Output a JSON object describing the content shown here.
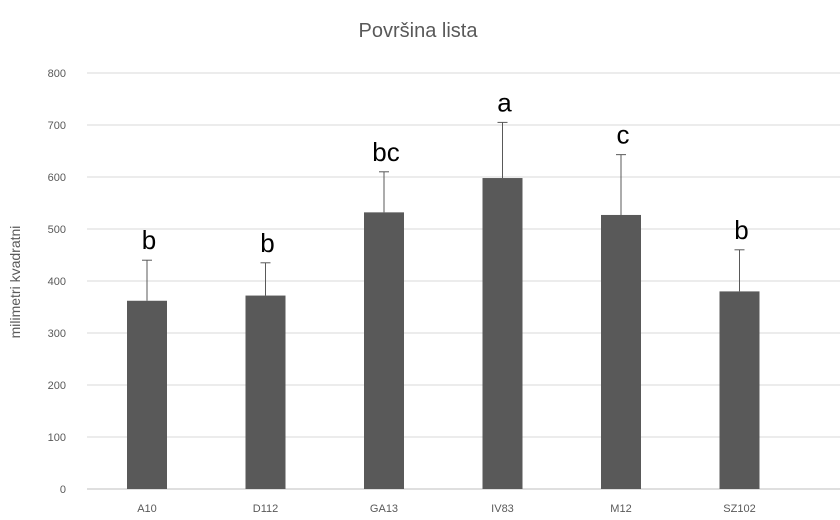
{
  "chart_data": {
    "type": "bar",
    "title": "Površina lista",
    "xlabel": "",
    "ylabel": "milimetri kvadratni",
    "categories": [
      "A10",
      "D112",
      "GA13",
      "IV83",
      "M12",
      "SZ102"
    ],
    "values": [
      362,
      372,
      532,
      598,
      527,
      380
    ],
    "error_upper": [
      440,
      435,
      610,
      705,
      643,
      460
    ],
    "significance_labels": [
      "b",
      "b",
      "bc",
      "a",
      "c",
      "b"
    ],
    "ylim": [
      0,
      800
    ],
    "yticks": [
      "0",
      "100",
      "200",
      "300",
      "400",
      "500",
      "600",
      "700",
      "800"
    ],
    "grid": true,
    "legend": "none",
    "bar_color": "#595959",
    "grid_color": "#d9d9d9"
  }
}
